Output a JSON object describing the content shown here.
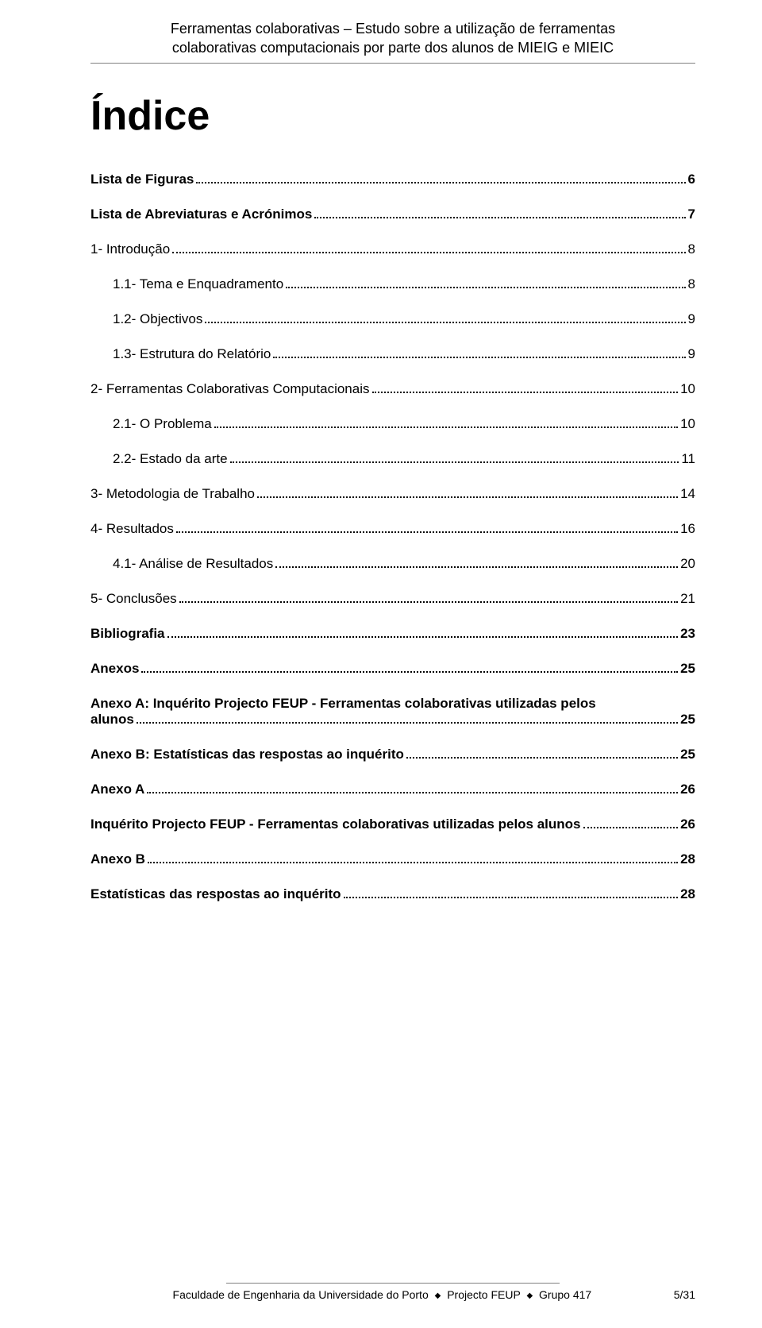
{
  "header": {
    "line1": "Ferramentas colaborativas – Estudo sobre a utilização de ferramentas",
    "line2": "colaborativas computacionais por parte dos alunos de MIEIG e MIEIC"
  },
  "title": "Índice",
  "toc": [
    {
      "label": "Lista de Figuras",
      "page": "6",
      "bold": true,
      "indent": 0
    },
    {
      "label": "Lista de Abreviaturas e Acrónimos",
      "page": "7",
      "bold": true,
      "indent": 0
    },
    {
      "label": "1-    Introdução",
      "page": "8",
      "bold": false,
      "indent": 0
    },
    {
      "label": "1.1-    Tema e Enquadramento",
      "page": "8",
      "bold": false,
      "indent": 1
    },
    {
      "label": "1.2-    Objectivos",
      "page": "9",
      "bold": false,
      "indent": 1
    },
    {
      "label": "1.3-    Estrutura do Relatório",
      "page": "9",
      "bold": false,
      "indent": 1
    },
    {
      "label": "2-    Ferramentas Colaborativas Computacionais",
      "page": "10",
      "bold": false,
      "indent": 0
    },
    {
      "label": "2.1-    O Problema",
      "page": "10",
      "bold": false,
      "indent": 1
    },
    {
      "label": "2.2-    Estado da arte",
      "page": "11",
      "bold": false,
      "indent": 1
    },
    {
      "label": "3-    Metodologia de Trabalho",
      "page": "14",
      "bold": false,
      "indent": 0
    },
    {
      "label": "4-    Resultados",
      "page": "16",
      "bold": false,
      "indent": 0
    },
    {
      "label": "4.1-    Análise de Resultados",
      "page": "20",
      "bold": false,
      "indent": 1
    },
    {
      "label": "5-    Conclusões",
      "page": "21",
      "bold": false,
      "indent": 0
    },
    {
      "label": "Bibliografia",
      "page": "23",
      "bold": true,
      "indent": 0
    },
    {
      "label": "Anexos",
      "page": "25",
      "bold": true,
      "indent": 0
    }
  ],
  "toc_multiline": {
    "labelLine1": "Anexo A: Inquérito Projecto FEUP - Ferramentas colaborativas utilizadas pelos",
    "labelLine2": "alunos",
    "page": "25",
    "bold": true
  },
  "toc_after": [
    {
      "label": "Anexo B: Estatísticas das respostas ao inquérito",
      "page": "25",
      "bold": true,
      "indent": 0
    },
    {
      "label": "Anexo A",
      "page": "26",
      "bold": true,
      "indent": 0
    },
    {
      "label": "Inquérito Projecto FEUP - Ferramentas colaborativas utilizadas pelos alunos",
      "page": "26",
      "bold": true,
      "indent": 0
    },
    {
      "label": "Anexo B",
      "page": "28",
      "bold": true,
      "indent": 0
    },
    {
      "label": "Estatísticas das respostas ao inquérito",
      "page": "28",
      "bold": true,
      "indent": 0
    }
  ],
  "footer": {
    "institution": "Faculdade de Engenharia da Universidade do Porto",
    "project": "Projecto FEUP",
    "group": "Grupo 417",
    "page": "5/31",
    "separator": "◆"
  }
}
